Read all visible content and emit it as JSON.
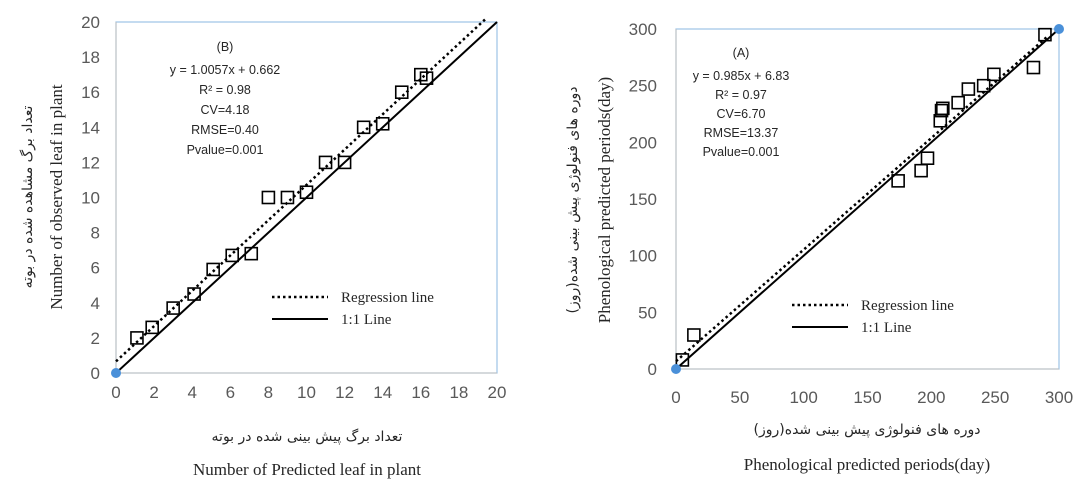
{
  "chart_data": [
    {
      "type": "scatter",
      "panel_label": "(B)",
      "annotations": [
        "y = 1.0057x  + 0.662",
        "R² = 0.98",
        "CV=4.18",
        "RMSE=0.40",
        "Pvalue=0.001"
      ],
      "xlabel_fa": "تعداد برگ  پیش بینی شده در بوته",
      "xlabel": "Number of Predicted leaf in plant",
      "ylabel_fa": "تعداد برگ مشاهده شده در بوته",
      "ylabel": "Number of observed leaf in plant",
      "xlim": [
        0,
        20
      ],
      "ylim": [
        0,
        20
      ],
      "xticks": [
        0,
        2,
        4,
        6,
        8,
        10,
        12,
        14,
        16,
        18,
        20
      ],
      "yticks": [
        0,
        2,
        4,
        6,
        8,
        10,
        12,
        14,
        16,
        18,
        20
      ],
      "legend": [
        {
          "label": "Regression line",
          "style": "dotted"
        },
        {
          "label": "1:1 Line",
          "style": "solid"
        }
      ],
      "legend_position": "bottom-right",
      "regression": {
        "slope": 1.0057,
        "intercept": 0.662
      },
      "x": [
        1.1,
        1.9,
        3.0,
        4.1,
        5.1,
        6.1,
        7.1,
        8.0,
        9.0,
        10.0,
        11.0,
        12.0,
        13.0,
        14.0,
        15.0,
        16.0,
        16.3
      ],
      "y": [
        2.0,
        2.6,
        3.7,
        4.5,
        5.9,
        6.7,
        6.8,
        10.0,
        10.0,
        10.3,
        12.0,
        12.0,
        14.0,
        14.2,
        16.0,
        17.0,
        16.8
      ],
      "marker": "open-square",
      "grid": false
    },
    {
      "type": "scatter",
      "panel_label": "(A)",
      "annotations": [
        "y = 0.985x + 6.83",
        "R² = 0.97",
        "CV=6.70",
        "RMSE=13.37",
        "Pvalue=0.001"
      ],
      "xlabel_fa": "دوره های فنولوژی پیش بینی شده(روز)",
      "xlabel": "Phenological  predicted periods(day)",
      "ylabel_fa": "دوره های فنولوژی پیش بینی شده(روز)",
      "ylabel": "Phenological  predicted periods(day)",
      "xlim": [
        0,
        300
      ],
      "ylim": [
        0,
        300
      ],
      "xticks": [
        0,
        50,
        100,
        150,
        200,
        250,
        300
      ],
      "yticks": [
        0,
        50,
        100,
        150,
        200,
        250,
        300
      ],
      "legend": [
        {
          "label": "Regression line",
          "style": "dotted"
        },
        {
          "label": "1:1 Line",
          "style": "solid"
        }
      ],
      "legend_position": "bottom-right",
      "regression": {
        "slope": 0.985,
        "intercept": 6.83
      },
      "x": [
        5,
        14,
        174,
        192,
        197,
        207,
        208,
        209,
        221,
        229,
        241,
        249,
        280,
        289
      ],
      "y": [
        8,
        30,
        166,
        175,
        186,
        219,
        228,
        230,
        235,
        247,
        250,
        260,
        266,
        295
      ],
      "marker": "open-square",
      "grid": false
    }
  ]
}
